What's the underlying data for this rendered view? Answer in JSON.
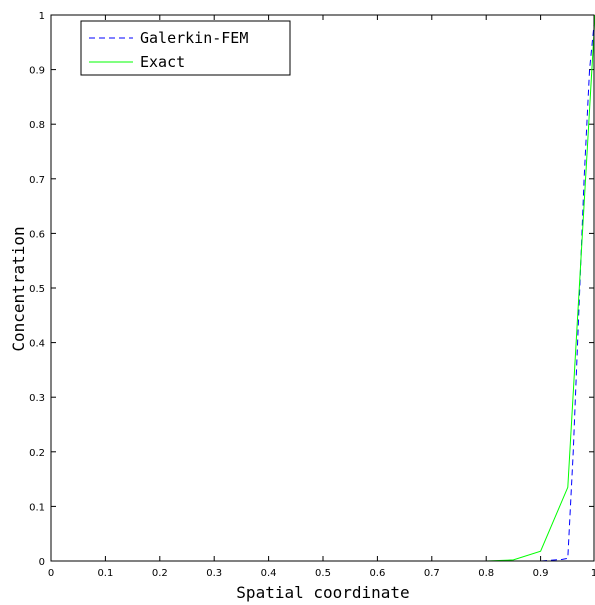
{
  "chart_data": {
    "type": "line",
    "title": "",
    "xlabel": "Spatial coordinate",
    "ylabel": "Concentration",
    "xlim": [
      0,
      1
    ],
    "ylim": [
      0,
      1
    ],
    "grid": false,
    "legend_position": "top-left",
    "x_ticks": [
      "0",
      "0.1",
      "0.2",
      "0.3",
      "0.4",
      "0.5",
      "0.6",
      "0.7",
      "0.8",
      "0.9",
      "1"
    ],
    "y_ticks": [
      "0",
      "0.1",
      "0.2",
      "0.3",
      "0.4",
      "0.5",
      "0.6",
      "0.7",
      "0.8",
      "0.9",
      "1"
    ],
    "series": [
      {
        "name": "Galerkin-FEM",
        "color": "#0000ff",
        "style": "dashed",
        "x": [
          0,
          0.1,
          0.2,
          0.3,
          0.4,
          0.5,
          0.6,
          0.7,
          0.8,
          0.85,
          0.9,
          0.94,
          0.95,
          0.96,
          0.97,
          0.98,
          0.99,
          1.0
        ],
        "y": [
          0,
          0,
          0,
          0,
          0,
          0,
          0,
          0,
          0,
          0,
          0,
          0.003,
          0.005,
          0.2,
          0.45,
          0.7,
          0.9,
          1.0
        ]
      },
      {
        "name": "Exact",
        "color": "#00ff00",
        "style": "solid",
        "x": [
          0,
          0.1,
          0.2,
          0.3,
          0.4,
          0.5,
          0.6,
          0.7,
          0.8,
          0.85,
          0.9,
          0.95,
          1.0
        ],
        "y": [
          0,
          0,
          0,
          0,
          0,
          0,
          0,
          0,
          0,
          0.002,
          0.018,
          0.135,
          1.0
        ]
      }
    ]
  }
}
